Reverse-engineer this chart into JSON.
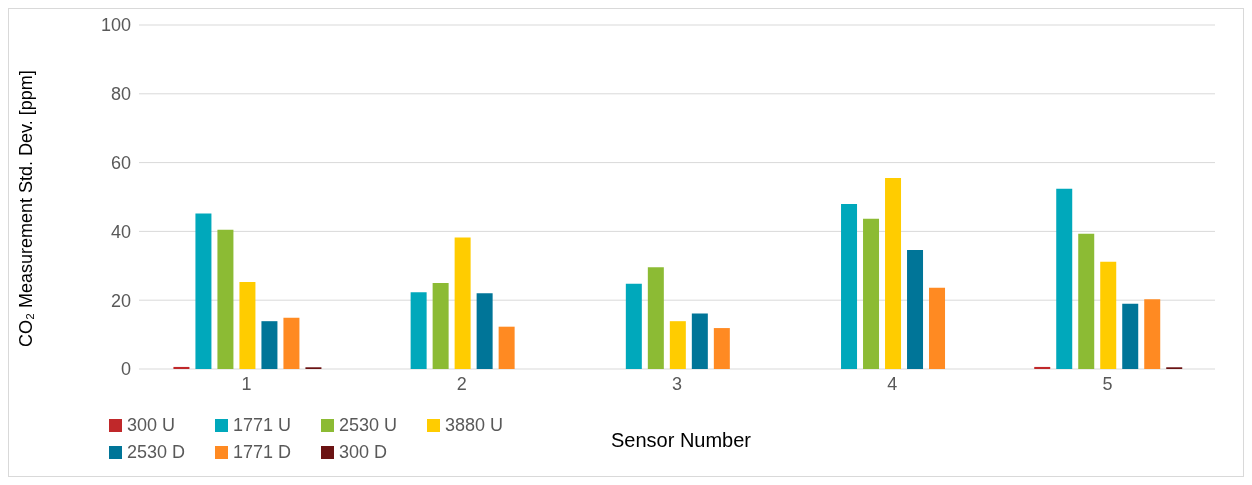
{
  "chart_data": {
    "type": "bar",
    "xlabel": "Sensor Number",
    "ylabel": "CO₂ Measurement  Std. Dev. [ppm]",
    "categories": [
      "1",
      "2",
      "3",
      "4",
      "5"
    ],
    "ylim": [
      0,
      100
    ],
    "yticks": [
      0,
      20,
      40,
      60,
      80,
      100
    ],
    "grid": "y",
    "legend": "bottom left",
    "series": [
      {
        "name": "300 U",
        "color": "#c0282a",
        "values": [
          0.6,
          0,
          0,
          0,
          0.6
        ]
      },
      {
        "name": "1771 U",
        "color": "#00a8bb",
        "values": [
          45.2,
          22.3,
          24.8,
          48.0,
          52.4
        ]
      },
      {
        "name": "2530 U",
        "color": "#8cbb34",
        "values": [
          40.5,
          25.0,
          29.6,
          43.7,
          39.3
        ]
      },
      {
        "name": "3880 U",
        "color": "#ffcc00",
        "values": [
          25.3,
          38.2,
          13.9,
          55.5,
          31.2
        ]
      },
      {
        "name": "2530 D",
        "color": "#007598",
        "values": [
          13.9,
          22.0,
          16.1,
          34.6,
          19.0
        ]
      },
      {
        "name": "1771 D",
        "color": "#ff8a22",
        "values": [
          14.9,
          12.3,
          11.9,
          23.6,
          20.3
        ]
      },
      {
        "name": "300 D",
        "color": "#6b1313",
        "values": [
          0.5,
          0,
          0,
          0,
          0.5
        ]
      }
    ]
  }
}
